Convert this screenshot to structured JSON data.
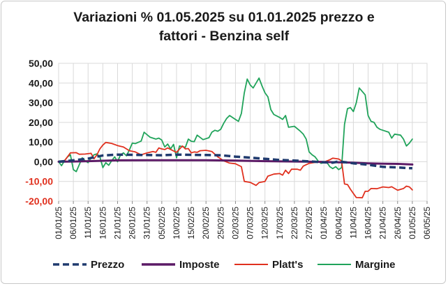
{
  "chart_data": {
    "type": "line",
    "title_lines": [
      "Variazioni % 01.05.2025 su 01.01.2025 prezzo e",
      "fattori - Benzina self"
    ],
    "xlabel": "",
    "ylabel": "",
    "ylim": [
      -20,
      50
    ],
    "y_ticks": [
      "50,00",
      "40,00",
      "30,00",
      "20,00",
      "10,00",
      "0,00",
      "-10,00",
      "-20,00"
    ],
    "y_tick_values": [
      50,
      40,
      30,
      20,
      10,
      0,
      -10,
      -20
    ],
    "y_tick_colors": [
      "#1a1a1a",
      "#1a1a1a",
      "#1a1a1a",
      "#1a1a1a",
      "#1a1a1a",
      "#1a1a1a",
      "#e0301e",
      "#e0301e"
    ],
    "x_ticks": [
      "01/01/25",
      "06/01/25",
      "11/01/25",
      "16/01/25",
      "21/01/25",
      "26/01/25",
      "31/01/25",
      "05/02/25",
      "10/02/25",
      "15/02/25",
      "20/02/25",
      "25/02/25",
      "02/03/25",
      "07/03/25",
      "12/03/25",
      "17/03/25",
      "22/03/25",
      "27/03/25",
      "01/04/25",
      "06/04/25",
      "11/04/25",
      "16/04/25",
      "21/04/25",
      "26/04/25",
      "01/05/25",
      "06/05/25"
    ],
    "x_tick_days": [
      0,
      5,
      10,
      15,
      20,
      25,
      30,
      35,
      40,
      45,
      50,
      55,
      60,
      65,
      70,
      75,
      80,
      85,
      90,
      95,
      100,
      105,
      110,
      115,
      120,
      125
    ],
    "grid": true,
    "legend_position": "bottom",
    "series": [
      {
        "name": "Prezzo",
        "color": "#1f3a6e",
        "style": "dashed",
        "points": [
          [
            0,
            0
          ],
          [
            5,
            0.7
          ],
          [
            10,
            1.6
          ],
          [
            15,
            3.2
          ],
          [
            20,
            3.6
          ],
          [
            25,
            3.5
          ],
          [
            30,
            3.4
          ],
          [
            35,
            3.3
          ],
          [
            40,
            3.6
          ],
          [
            45,
            3.5
          ],
          [
            50,
            3.4
          ],
          [
            55,
            3.3
          ],
          [
            60,
            2.6
          ],
          [
            65,
            2.1
          ],
          [
            70,
            1.5
          ],
          [
            75,
            0.9
          ],
          [
            80,
            0.6
          ],
          [
            85,
            0.2
          ],
          [
            90,
            -0.3
          ],
          [
            93,
            -0.5
          ],
          [
            95,
            0.2
          ],
          [
            98,
            -0.4
          ],
          [
            100,
            -0.8
          ],
          [
            105,
            -1.5
          ],
          [
            110,
            -2.6
          ],
          [
            115,
            -2.9
          ],
          [
            118,
            -3.2
          ],
          [
            120,
            -3.3
          ]
        ]
      },
      {
        "name": "Imposte",
        "color": "#5c1a66",
        "style": "solid",
        "points": [
          [
            0,
            0
          ],
          [
            5,
            0.1
          ],
          [
            10,
            0.3
          ],
          [
            15,
            0.5
          ],
          [
            20,
            0.7
          ],
          [
            30,
            0.8
          ],
          [
            40,
            0.8
          ],
          [
            50,
            0.8
          ],
          [
            60,
            0.6
          ],
          [
            70,
            0.3
          ],
          [
            80,
            0.1
          ],
          [
            85,
            0
          ],
          [
            90,
            -0.1
          ],
          [
            95,
            -0.3
          ],
          [
            100,
            -0.5
          ],
          [
            105,
            -0.8
          ],
          [
            110,
            -1.0
          ],
          [
            115,
            -1.1
          ],
          [
            120,
            -1.4
          ]
        ]
      },
      {
        "name": "Platt's",
        "color": "#e0301e",
        "style": "solid",
        "points": [
          [
            0,
            0
          ],
          [
            2,
            0.5
          ],
          [
            3,
            2.5
          ],
          [
            4,
            4.5
          ],
          [
            6,
            4.6
          ],
          [
            7,
            3.8
          ],
          [
            9,
            3.9
          ],
          [
            11,
            4.3
          ],
          [
            12,
            1.5
          ],
          [
            13,
            3.5
          ],
          [
            14,
            6.5
          ],
          [
            15,
            8.5
          ],
          [
            16,
            9.8
          ],
          [
            18,
            9.3
          ],
          [
            20,
            8.2
          ],
          [
            22,
            7.5
          ],
          [
            24,
            5.6
          ],
          [
            26,
            5.0
          ],
          [
            28,
            3.5
          ],
          [
            30,
            4.5
          ],
          [
            32,
            5.2
          ],
          [
            33,
            4.8
          ],
          [
            34,
            7.0
          ],
          [
            35,
            6.5
          ],
          [
            36,
            6.2
          ],
          [
            37,
            7.0
          ],
          [
            39,
            5.5
          ],
          [
            40,
            4.8
          ],
          [
            42,
            8.0
          ],
          [
            43,
            6.5
          ],
          [
            44,
            6.7
          ],
          [
            45,
            4.5
          ],
          [
            46,
            5.0
          ],
          [
            47,
            4.8
          ],
          [
            48,
            5.6
          ],
          [
            50,
            5.8
          ],
          [
            52,
            5.2
          ],
          [
            54,
            2.5
          ],
          [
            56,
            0.5
          ],
          [
            58,
            -0.7
          ],
          [
            60,
            -1.0
          ],
          [
            62,
            -2.5
          ],
          [
            63,
            -10.0
          ],
          [
            65,
            -10.5
          ],
          [
            67,
            -12.0
          ],
          [
            68,
            -10.6
          ],
          [
            70,
            -10.0
          ],
          [
            71,
            -7.3
          ],
          [
            73,
            -6.3
          ],
          [
            75,
            -6.0
          ],
          [
            76,
            -6.8
          ],
          [
            77,
            -4.3
          ],
          [
            78,
            -6.0
          ],
          [
            79,
            -3.8
          ],
          [
            81,
            -3.8
          ],
          [
            82,
            -4.3
          ],
          [
            83,
            -2.2
          ],
          [
            85,
            -0.8
          ],
          [
            87,
            -0.3
          ],
          [
            88,
            -0.1
          ],
          [
            89,
            0.1
          ],
          [
            90,
            -0.2
          ],
          [
            92,
            1.0
          ],
          [
            93,
            1.8
          ],
          [
            94,
            1.6
          ],
          [
            95,
            1.4
          ],
          [
            96,
            0.4
          ],
          [
            97,
            -11.3
          ],
          [
            98,
            -11.6
          ],
          [
            99,
            -14.0
          ],
          [
            101,
            -18.2
          ],
          [
            103,
            -18.3
          ],
          [
            104,
            -15.0
          ],
          [
            105,
            -15.0
          ],
          [
            106,
            -13.6
          ],
          [
            108,
            -13.7
          ],
          [
            110,
            -12.8
          ],
          [
            112,
            -13.1
          ],
          [
            113,
            -12.7
          ],
          [
            115,
            -14.5
          ],
          [
            117,
            -13.6
          ],
          [
            118,
            -12.4
          ],
          [
            119,
            -12.8
          ],
          [
            120,
            -14.3
          ]
        ]
      },
      {
        "name": "Margine",
        "color": "#20a35a",
        "style": "solid",
        "points": [
          [
            0,
            0
          ],
          [
            1,
            -2.0
          ],
          [
            2,
            0.5
          ],
          [
            3,
            2.5
          ],
          [
            4,
            3.5
          ],
          [
            5,
            -4.0
          ],
          [
            6,
            -5.0
          ],
          [
            7,
            -1.5
          ],
          [
            8,
            2.0
          ],
          [
            9,
            0.5
          ],
          [
            10,
            -0.5
          ],
          [
            11,
            2.0
          ],
          [
            12,
            3.5
          ],
          [
            13,
            4.0
          ],
          [
            14,
            2.5
          ],
          [
            15,
            -3.0
          ],
          [
            16,
            -0.5
          ],
          [
            17,
            -1.8
          ],
          [
            18,
            0.5
          ],
          [
            19,
            2.5
          ],
          [
            20,
            0
          ],
          [
            21,
            3.5
          ],
          [
            22,
            4.5
          ],
          [
            23,
            3.0
          ],
          [
            24,
            6.0
          ],
          [
            25,
            9.5
          ],
          [
            26,
            9.2
          ],
          [
            28,
            10.5
          ],
          [
            29,
            15.0
          ],
          [
            31,
            12.5
          ],
          [
            33,
            11.5
          ],
          [
            34,
            12.0
          ],
          [
            35,
            11.0
          ],
          [
            36,
            7.5
          ],
          [
            37,
            9.0
          ],
          [
            38,
            6.5
          ],
          [
            39,
            8.8
          ],
          [
            40,
            2.0
          ],
          [
            41,
            8.0
          ],
          [
            43,
            7.3
          ],
          [
            44,
            11.5
          ],
          [
            45,
            10.4
          ],
          [
            46,
            10.2
          ],
          [
            47,
            13.5
          ],
          [
            49,
            11.2
          ],
          [
            51,
            12.2
          ],
          [
            52,
            15.0
          ],
          [
            53,
            16.0
          ],
          [
            54,
            15.5
          ],
          [
            55,
            16.5
          ],
          [
            56,
            19.5
          ],
          [
            57,
            22.0
          ],
          [
            58,
            23.5
          ],
          [
            60,
            21.5
          ],
          [
            61,
            20.5
          ],
          [
            62,
            24.5
          ],
          [
            63,
            35.0
          ],
          [
            64,
            42.0
          ],
          [
            65,
            39.0
          ],
          [
            66,
            37.5
          ],
          [
            67,
            40.0
          ],
          [
            68,
            42.5
          ],
          [
            69,
            38.5
          ],
          [
            70,
            35.0
          ],
          [
            71,
            33.0
          ],
          [
            72,
            26.5
          ],
          [
            73,
            24.0
          ],
          [
            75,
            22.5
          ],
          [
            76,
            21.5
          ],
          [
            77,
            23.5
          ],
          [
            78,
            17.5
          ],
          [
            80,
            18.0
          ],
          [
            82,
            15.5
          ],
          [
            83,
            14.0
          ],
          [
            84,
            11.5
          ],
          [
            85,
            5.0
          ],
          [
            86,
            3.5
          ],
          [
            87,
            2.5
          ],
          [
            88,
            0.5
          ],
          [
            89,
            -0.8
          ],
          [
            90,
            -0.5
          ],
          [
            91,
            -0.3
          ],
          [
            92,
            -2.5
          ],
          [
            93,
            -3.5
          ],
          [
            94,
            -2.5
          ],
          [
            95,
            -4.0
          ],
          [
            96,
            -3.0
          ],
          [
            97,
            19.0
          ],
          [
            98,
            27.0
          ],
          [
            99,
            27.5
          ],
          [
            100,
            25.5
          ],
          [
            101,
            30.0
          ],
          [
            102,
            37.5
          ],
          [
            104,
            34.0
          ],
          [
            105,
            23.5
          ],
          [
            106,
            20.5
          ],
          [
            107,
            20.0
          ],
          [
            108,
            17.5
          ],
          [
            109,
            16.5
          ],
          [
            110,
            16.0
          ],
          [
            112,
            15.0
          ],
          [
            113,
            12.0
          ],
          [
            114,
            14.0
          ],
          [
            116,
            13.5
          ],
          [
            117,
            11.5
          ],
          [
            118,
            8.0
          ],
          [
            119,
            9.5
          ],
          [
            120,
            11.5
          ]
        ]
      }
    ]
  }
}
